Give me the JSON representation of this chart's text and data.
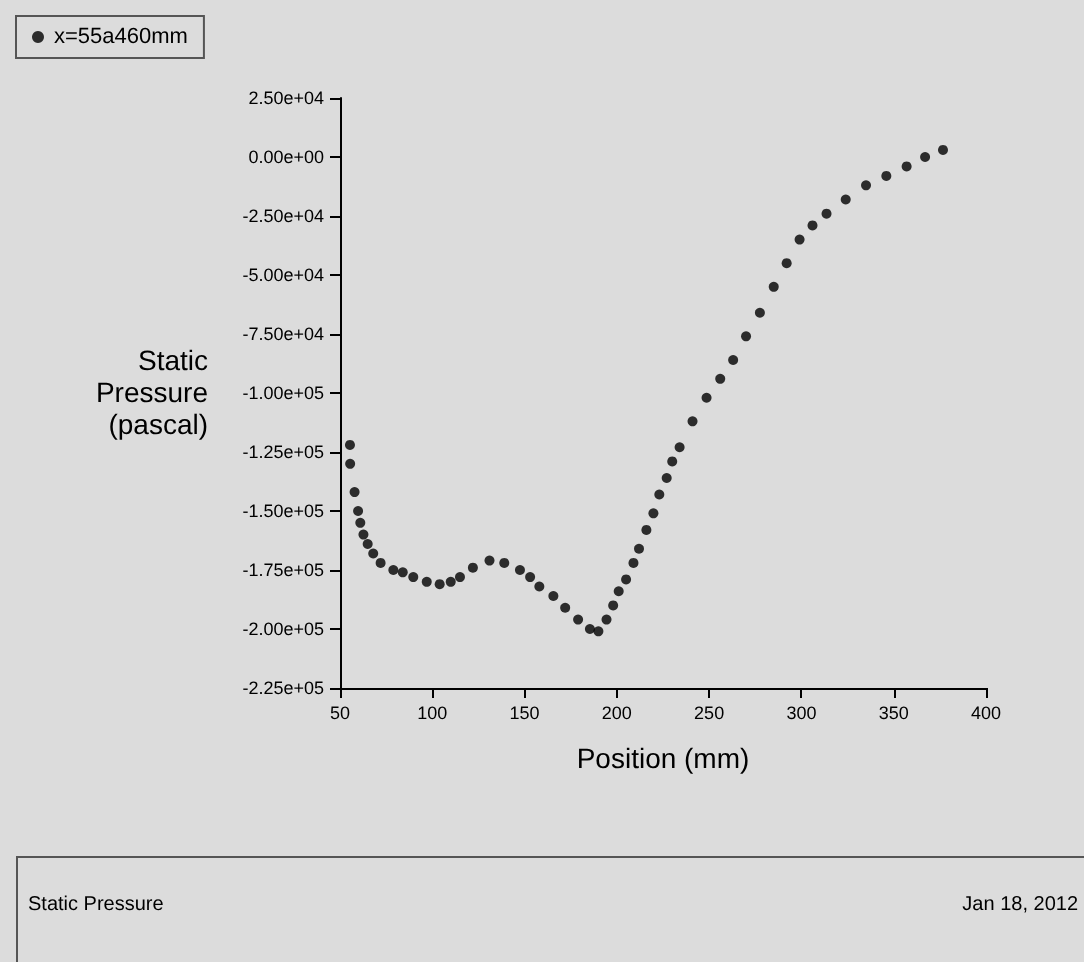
{
  "chart_data": {
    "type": "scatter",
    "xlabel": "Position (mm)",
    "ylabel": "Static Pressure (pascal)",
    "annotations": [
      "Static Pressure",
      "Jan 18, 2012"
    ],
    "xlim": [
      50,
      400
    ],
    "xticks": [
      50,
      100,
      150,
      200,
      250,
      300,
      350,
      400
    ],
    "ylim": [
      -225000,
      25000
    ],
    "yticks": [
      {
        "value": 25000,
        "label": "2.50e+04"
      },
      {
        "value": 0,
        "label": "0.00e+00"
      },
      {
        "value": -25000,
        "label": "-2.50e+04"
      },
      {
        "value": -50000,
        "label": "-5.00e+04"
      },
      {
        "value": -75000,
        "label": "-7.50e+04"
      },
      {
        "value": -100000,
        "label": "-1.00e+05"
      },
      {
        "value": -125000,
        "label": "-1.25e+05"
      },
      {
        "value": -150000,
        "label": "-1.50e+05"
      },
      {
        "value": -175000,
        "label": "-1.75e+05"
      },
      {
        "value": -200000,
        "label": "-2.00e+05"
      },
      {
        "value": -225000,
        "label": "-2.25e+05"
      }
    ],
    "grid": false,
    "legend": "top left",
    "marker": "circle",
    "series": [
      {
        "name": "x=55a460mm",
        "color": "#000000",
        "x": [
          55.4,
          55.5,
          57.9,
          59.8,
          61,
          62.7,
          65,
          68,
          72,
          78.9,
          84,
          89.7,
          97,
          104,
          110,
          115,
          122,
          131,
          139,
          147.5,
          153,
          158,
          165.6,
          172,
          179,
          185.4,
          190,
          194.4,
          198,
          201,
          205,
          209,
          212,
          216,
          219.8,
          223,
          227,
          230,
          234,
          241,
          248.6,
          256,
          263,
          270,
          277.5,
          285,
          292,
          299,
          306,
          313.6,
          324,
          335,
          346,
          357,
          367,
          376.7
        ],
        "values": [
          -122000,
          -130000,
          -142000,
          -150000,
          -155000,
          -160000,
          -164000,
          -168000,
          -172000,
          -175000,
          -176000,
          -178000,
          -180000,
          -181000,
          -180000,
          -178000,
          -174000,
          -171000,
          -172000,
          -175000,
          -178000,
          -182000,
          -186000,
          -191000,
          -196000,
          -200000,
          -201000,
          -196000,
          -190000,
          -184000,
          -179000,
          -172000,
          -166000,
          -158000,
          -151000,
          -143000,
          -136000,
          -129000,
          -123000,
          -112000,
          -102000,
          -94000,
          -86000,
          -76000,
          -66000,
          -55000,
          -45000,
          -35000,
          -29000,
          -24000,
          -18000,
          -12000,
          -8000,
          -4000,
          0,
          3000
        ]
      }
    ]
  }
}
